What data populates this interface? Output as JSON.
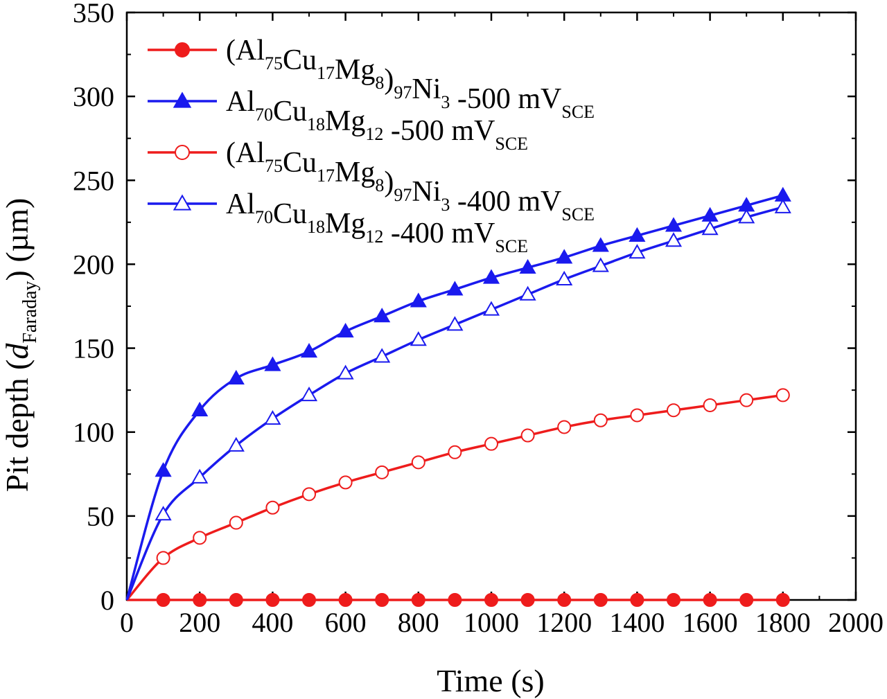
{
  "chart_data": {
    "type": "line",
    "xlabel": "Time (s)",
    "ylabel": {
      "prefix": "Pit depth (",
      "symbol": "d",
      "subscript": "Faraday",
      "suffix": ") (µm)"
    },
    "xlim": [
      0,
      2000
    ],
    "ylim": [
      0,
      350
    ],
    "xticks": [
      0,
      200,
      400,
      600,
      800,
      1000,
      1200,
      1400,
      1600,
      1800,
      2000
    ],
    "yticks": [
      0,
      50,
      100,
      150,
      200,
      250,
      300,
      350
    ],
    "legend_position": "top-left",
    "series": [
      {
        "name": "(Al75Cu17Mg8)97Ni3 -500 mVSCE",
        "label_parts": [
          {
            "t": "(Al"
          },
          {
            "t": "75",
            "sub": true
          },
          {
            "t": "Cu"
          },
          {
            "t": "17",
            "sub": true
          },
          {
            "t": "Mg"
          },
          {
            "t": "8",
            "sub": true
          },
          {
            "t": ")"
          },
          {
            "t": "97",
            "sub": true
          },
          {
            "t": "Ni"
          },
          {
            "t": "3",
            "sub": true
          },
          {
            "t": " -500 mV"
          },
          {
            "t": "SCE",
            "sub": true
          }
        ],
        "color": "#ee1c1c",
        "marker": "circle",
        "filled": true,
        "x": [
          0,
          100,
          200,
          300,
          400,
          500,
          600,
          700,
          800,
          900,
          1000,
          1100,
          1200,
          1300,
          1400,
          1500,
          1600,
          1700,
          1800
        ],
        "y": [
          0,
          0,
          0,
          0,
          0,
          0,
          0,
          0,
          0,
          0,
          0,
          0,
          0,
          0,
          0,
          0,
          0,
          0,
          0
        ]
      },
      {
        "name": "Al70Cu18Mg12 -500 mVSCE",
        "label_parts": [
          {
            "t": "Al"
          },
          {
            "t": "70",
            "sub": true
          },
          {
            "t": "Cu"
          },
          {
            "t": "18",
            "sub": true
          },
          {
            "t": "Mg"
          },
          {
            "t": "12",
            "sub": true
          },
          {
            "t": " -500 mV"
          },
          {
            "t": "SCE",
            "sub": true
          }
        ],
        "color": "#1a1aee",
        "marker": "triangle",
        "filled": true,
        "x": [
          0,
          100,
          200,
          300,
          400,
          500,
          600,
          700,
          800,
          900,
          1000,
          1100,
          1200,
          1300,
          1400,
          1500,
          1600,
          1700,
          1800
        ],
        "y": [
          0,
          77,
          113,
          132,
          140,
          148,
          160,
          169,
          178,
          185,
          192,
          198,
          204,
          211,
          217,
          223,
          229,
          235,
          241
        ]
      },
      {
        "name": "(Al75Cu17Mg8)97Ni3 -400 mVSCE",
        "label_parts": [
          {
            "t": "(Al"
          },
          {
            "t": "75",
            "sub": true
          },
          {
            "t": "Cu"
          },
          {
            "t": "17",
            "sub": true
          },
          {
            "t": "Mg"
          },
          {
            "t": "8",
            "sub": true
          },
          {
            "t": ")"
          },
          {
            "t": "97",
            "sub": true
          },
          {
            "t": "Ni"
          },
          {
            "t": "3",
            "sub": true
          },
          {
            "t": " -400 mV"
          },
          {
            "t": "SCE",
            "sub": true
          }
        ],
        "color": "#ee1c1c",
        "marker": "circle",
        "filled": false,
        "x": [
          0,
          100,
          200,
          300,
          400,
          500,
          600,
          700,
          800,
          900,
          1000,
          1100,
          1200,
          1300,
          1400,
          1500,
          1600,
          1700,
          1800
        ],
        "y": [
          0,
          25,
          37,
          46,
          55,
          63,
          70,
          76,
          82,
          88,
          93,
          98,
          103,
          107,
          110,
          113,
          116,
          119,
          122
        ]
      },
      {
        "name": "Al70Cu18Mg12 -400 mVSCE",
        "label_parts": [
          {
            "t": "Al"
          },
          {
            "t": "70",
            "sub": true
          },
          {
            "t": "Cu"
          },
          {
            "t": "18",
            "sub": true
          },
          {
            "t": "Mg"
          },
          {
            "t": "12",
            "sub": true
          },
          {
            "t": " -400 mV"
          },
          {
            "t": "SCE",
            "sub": true
          }
        ],
        "color": "#1a1aee",
        "marker": "triangle",
        "filled": false,
        "x": [
          0,
          100,
          200,
          300,
          400,
          500,
          600,
          700,
          800,
          900,
          1000,
          1100,
          1200,
          1300,
          1400,
          1500,
          1600,
          1700,
          1800
        ],
        "y": [
          0,
          51,
          73,
          92,
          108,
          122,
          135,
          145,
          155,
          164,
          173,
          182,
          191,
          199,
          207,
          214,
          221,
          228,
          234
        ]
      }
    ]
  }
}
